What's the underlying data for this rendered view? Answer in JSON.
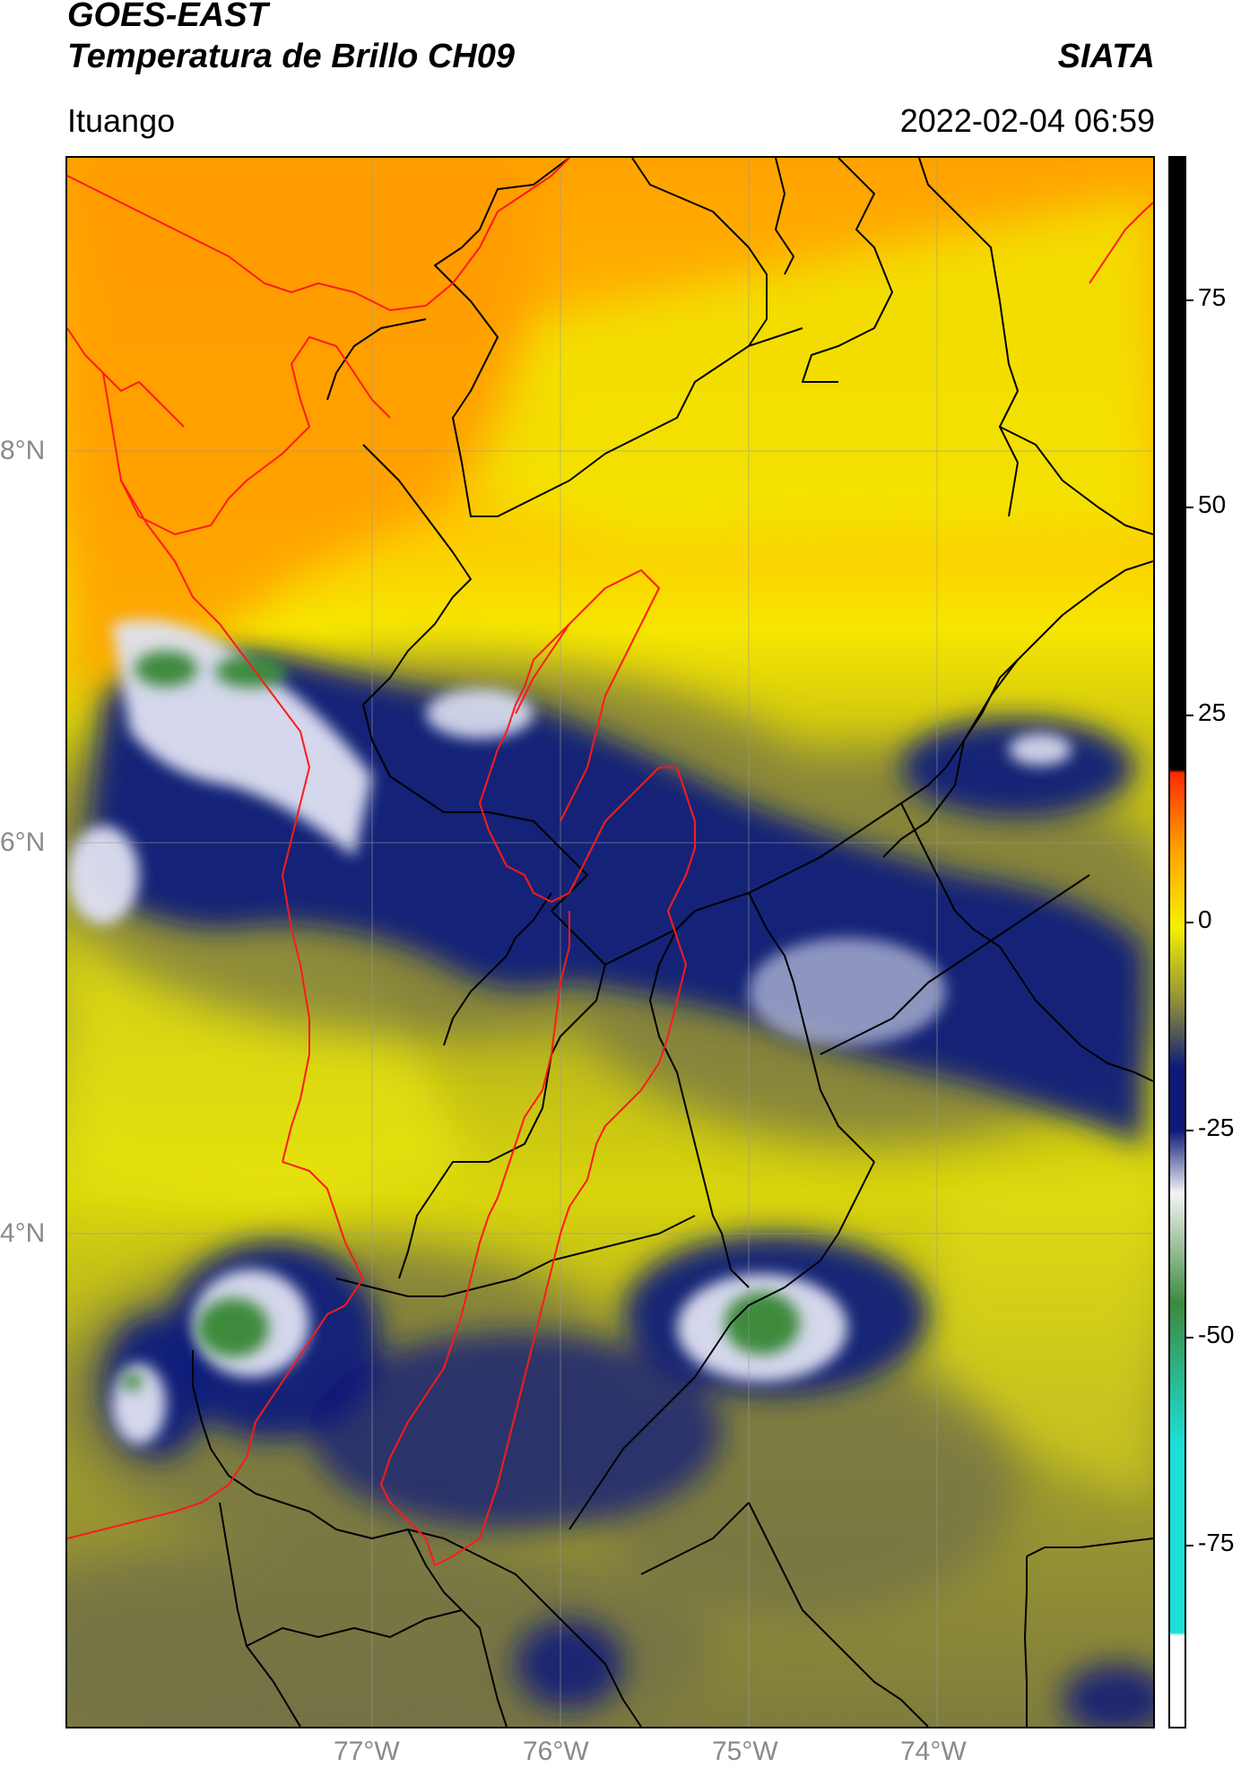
{
  "header": {
    "satellite": "GOES-EAST",
    "product": "Temperatura de Brillo CH09",
    "brand": "SIATA",
    "location": "Ituango",
    "timestamp": "2022-02-04 06:59"
  },
  "map": {
    "lat_labels": [
      "8°N",
      "6°N",
      "4°N"
    ],
    "lon_labels": [
      "77°W",
      "76°W",
      "75°W",
      "74°W"
    ],
    "gridlines": true,
    "border_colors": {
      "department": "#000000",
      "highlight": "#ff1a1a"
    }
  },
  "colorbar": {
    "labels": [
      "75",
      "50",
      "25",
      "0",
      "-25",
      "-50",
      "-75"
    ],
    "range": [
      -95,
      90
    ],
    "colors": {
      "warm_top": "#000000",
      "red": "#ff2a00",
      "orange": "#ffa000",
      "yellow": "#f5f000",
      "olive": "#8a8a3a",
      "navy": "#0e1a7a",
      "white": "#f4f4f4",
      "green": "#3c8a3c",
      "cyan": "#1ae0d8"
    }
  }
}
